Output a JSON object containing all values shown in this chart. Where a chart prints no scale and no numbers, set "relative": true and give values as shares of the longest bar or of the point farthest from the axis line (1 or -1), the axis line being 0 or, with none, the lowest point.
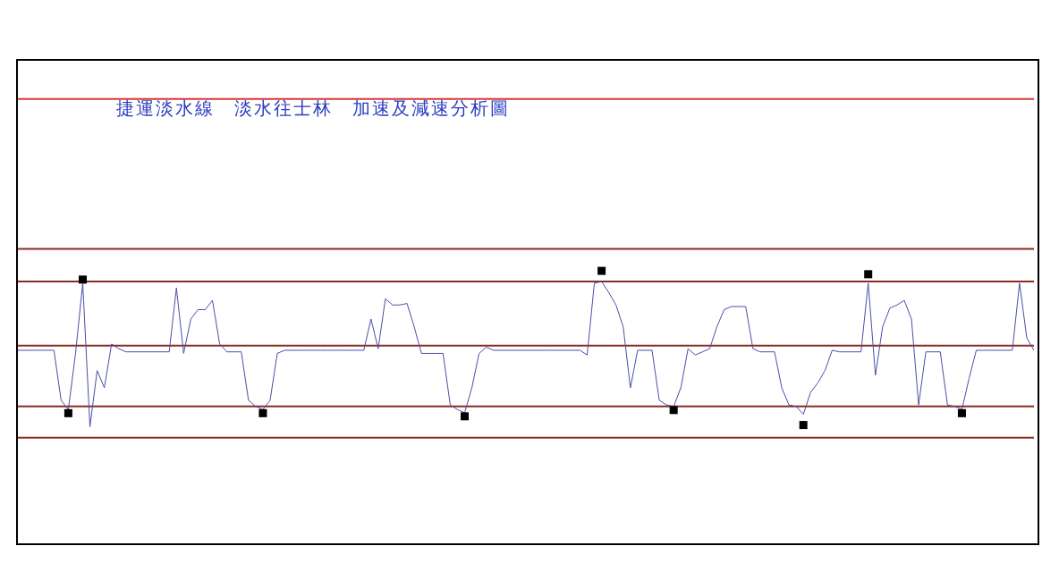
{
  "chart_data": {
    "type": "line",
    "title": "捷運淡水線　淡水往士林　加速及減速分析圖",
    "relative": true,
    "grid": false,
    "legend": false,
    "categories": [
      null,
      null,
      null,
      null,
      null,
      null,
      null,
      null,
      null,
      null,
      null,
      null,
      null,
      null,
      null,
      null,
      null,
      null,
      null,
      null,
      null,
      null,
      null,
      null,
      null,
      null,
      null,
      null,
      null,
      null,
      null,
      null,
      null,
      null,
      null,
      null,
      null,
      null,
      null,
      null,
      null,
      null,
      null,
      null,
      null,
      null,
      null,
      null,
      null,
      null,
      null,
      null,
      null,
      null,
      null,
      null,
      null,
      null,
      null,
      null,
      null,
      null,
      null,
      null,
      null,
      null,
      null,
      null,
      null,
      null,
      null,
      null,
      null,
      null,
      null,
      null,
      null,
      null,
      null,
      null,
      null,
      null,
      null,
      null,
      null,
      null,
      null,
      null,
      null,
      null,
      null,
      null,
      null,
      null,
      null,
      null,
      null,
      null,
      null,
      null,
      null,
      null,
      null,
      null,
      null,
      null,
      null,
      null,
      null,
      null,
      null,
      null,
      null,
      null,
      null,
      null,
      null,
      null,
      null,
      null,
      null,
      null,
      null,
      null,
      null,
      null,
      null,
      null,
      null,
      null,
      null,
      null,
      null,
      null,
      null,
      null,
      null,
      null,
      null,
      null,
      null,
      null
    ],
    "series": [
      {
        "color": "#4a4ea8",
        "marker": "none",
        "values": [
          0.56,
          0.56,
          0.56,
          0.56,
          0.56,
          0.56,
          0.24,
          0.18,
          0.54,
          0.99,
          0.07,
          0.43,
          0.32,
          0.6,
          0.57,
          0.55,
          0.55,
          0.55,
          0.55,
          0.55,
          0.55,
          0.55,
          0.96,
          0.54,
          0.76,
          0.82,
          0.82,
          0.88,
          0.6,
          0.55,
          0.55,
          0.55,
          0.24,
          0.2,
          0.18,
          0.24,
          0.54,
          0.56,
          0.56,
          0.56,
          0.56,
          0.56,
          0.56,
          0.56,
          0.56,
          0.56,
          0.56,
          0.56,
          0.56,
          0.76,
          0.57,
          0.89,
          0.85,
          0.85,
          0.86,
          0.71,
          0.54,
          0.54,
          0.54,
          0.54,
          0.21,
          0.18,
          0.16,
          0.32,
          0.54,
          0.58,
          0.56,
          0.56,
          0.56,
          0.56,
          0.56,
          0.56,
          0.56,
          0.56,
          0.56,
          0.56,
          0.56,
          0.56,
          0.56,
          0.53,
          0.99,
          1,
          0.93,
          0.85,
          0.71,
          0.32,
          0.56,
          0.56,
          0.56,
          0.24,
          0.21,
          0.2,
          0.32,
          0.57,
          0.53,
          0.55,
          0.57,
          0.71,
          0.82,
          0.84,
          0.84,
          0.84,
          0.57,
          0.55,
          0.55,
          0.55,
          0.32,
          0.21,
          0.2,
          0.15,
          0.29,
          0.35,
          0.43,
          0.56,
          0.55,
          0.55,
          0.55,
          0.55,
          0.99,
          0.4,
          0.71,
          0.83,
          0.85,
          0.88,
          0.76,
          0.21,
          0.55,
          0.55,
          0.55,
          0.21,
          0.2,
          0.18,
          0.38,
          0.56,
          0.56,
          0.56,
          0.56,
          0.56,
          0.56,
          0.99,
          0.64,
          0.56
        ]
      }
    ],
    "ref_lines": [
      {
        "axis": "y",
        "value": 2.17,
        "color": "#d83a3a"
      },
      {
        "axis": "y",
        "value": 1.21,
        "color": "#8b2a20"
      },
      {
        "axis": "y",
        "value": 1,
        "color": "#8b2a20"
      },
      {
        "axis": "y",
        "value": 0.59,
        "color": "#8b2a20"
      },
      {
        "axis": "y",
        "value": 0.2,
        "color": "#8b2a20"
      },
      {
        "axis": "y",
        "value": 0,
        "color": "#8b2a20"
      }
    ]
  }
}
